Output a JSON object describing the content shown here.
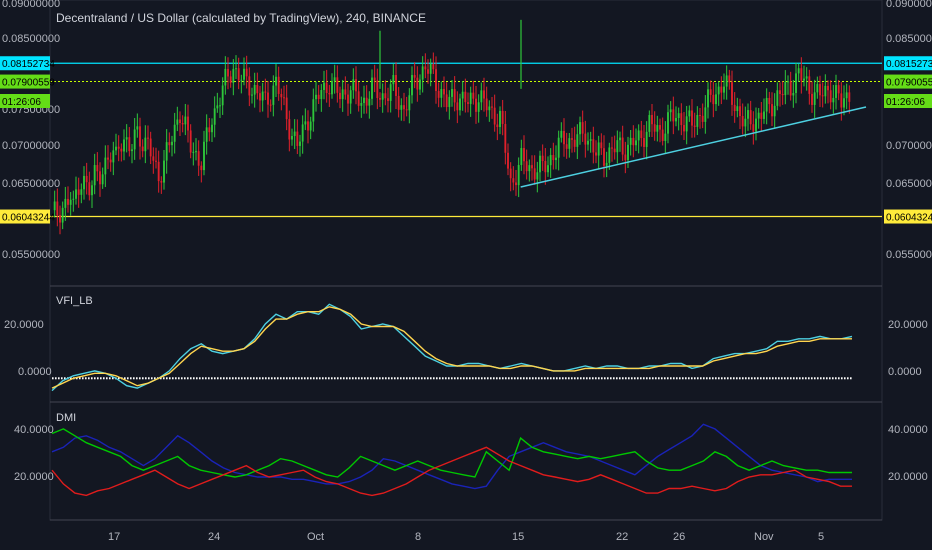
{
  "chart_data": [
    {
      "type": "candlestick",
      "title": "Decentraland / US Dollar (calculated by TradingView), 240, BINANCE",
      "y_ticks": [
        "0.09000000",
        "0.08500000",
        "0.07500000",
        "0.07000000",
        "0.06500000",
        "0.05500000"
      ],
      "ylim": [
        0.052,
        0.09
      ],
      "x_ticks": [
        "17",
        "24",
        "Oct",
        "8",
        "15",
        "22",
        "26",
        "Nov",
        "5"
      ],
      "close_path": [
        [
          0,
          0.0605
        ],
        [
          2,
          0.063
        ],
        [
          4,
          0.066
        ],
        [
          6,
          0.069
        ],
        [
          8,
          0.072
        ],
        [
          9,
          0.07
        ],
        [
          10,
          0.066
        ],
        [
          11,
          0.07
        ],
        [
          12,
          0.075
        ],
        [
          13,
          0.07
        ],
        [
          14,
          0.068
        ],
        [
          15,
          0.074
        ],
        [
          16,
          0.078
        ],
        [
          17,
          0.081
        ],
        [
          18,
          0.079
        ],
        [
          19,
          0.078
        ],
        [
          20,
          0.076
        ],
        [
          21,
          0.079
        ],
        [
          22,
          0.074
        ],
        [
          23,
          0.07
        ],
        [
          24,
          0.074
        ],
        [
          25,
          0.077
        ],
        [
          26,
          0.079
        ],
        [
          27,
          0.077
        ],
        [
          28,
          0.078
        ],
        [
          29,
          0.076
        ],
        [
          30,
          0.078
        ],
        [
          31,
          0.077
        ],
        [
          32,
          0.078
        ],
        [
          33,
          0.075
        ],
        [
          34,
          0.079
        ],
        [
          35,
          0.081
        ],
        [
          36,
          0.079
        ],
        [
          37,
          0.076
        ],
        [
          38,
          0.077
        ],
        [
          39,
          0.076
        ],
        [
          40,
          0.077
        ],
        [
          41,
          0.075
        ],
        [
          42,
          0.074
        ],
        [
          43,
          0.065
        ],
        [
          44,
          0.068
        ],
        [
          45,
          0.067
        ],
        [
          46,
          0.067
        ],
        [
          47,
          0.069
        ],
        [
          48,
          0.071
        ],
        [
          49,
          0.071
        ],
        [
          50,
          0.072
        ],
        [
          51,
          0.069
        ],
        [
          52,
          0.069
        ],
        [
          53,
          0.07
        ],
        [
          54,
          0.07
        ],
        [
          55,
          0.071
        ],
        [
          56,
          0.073
        ],
        [
          57,
          0.072
        ],
        [
          58,
          0.074
        ],
        [
          59,
          0.074
        ],
        [
          60,
          0.073
        ],
        [
          61,
          0.075
        ],
        [
          62,
          0.077
        ],
        [
          63,
          0.079
        ],
        [
          64,
          0.076
        ],
        [
          65,
          0.073
        ],
        [
          66,
          0.074
        ],
        [
          67,
          0.075
        ],
        [
          68,
          0.077
        ],
        [
          69,
          0.078
        ],
        [
          70,
          0.08
        ],
        [
          71,
          0.078
        ],
        [
          72,
          0.077
        ],
        [
          73,
          0.078
        ],
        [
          74,
          0.076
        ],
        [
          75,
          0.078
        ]
      ],
      "price_tags": [
        {
          "text": "0.08152734",
          "value": 0.08152734,
          "color": "#00e5ff"
        },
        {
          "text": "0.07900559",
          "value": 0.07900559,
          "color": "#64dd17"
        },
        {
          "text": "01:26:06",
          "value": 0.077,
          "color": "#64dd17"
        },
        {
          "text": "0.06043244",
          "value": 0.06043244,
          "color": "#ffeb3b"
        }
      ],
      "horizontal_lines": [
        {
          "value": 0.08152734,
          "color": "#00e5ff",
          "style": "solid"
        },
        {
          "value": 0.07900559,
          "color": "#c6ff00",
          "style": "dotted"
        },
        {
          "value": 0.06043244,
          "color": "#ffeb3b",
          "style": "solid"
        }
      ],
      "trendline": {
        "from": [
          43,
          0.0645
        ],
        "to": [
          75,
          0.0755
        ],
        "color": "#4dd0e1"
      }
    },
    {
      "type": "line",
      "name": "VFI_LB",
      "y_ticks": [
        "20.0000",
        "0.0000"
      ],
      "ylim": [
        -8,
        35
      ],
      "series": [
        {
          "color": "#4dd0e1",
          "values": [
            -5,
            -1,
            1,
            2,
            3,
            2,
            0,
            -3,
            -4,
            -2,
            0,
            3,
            8,
            12,
            14,
            11,
            10,
            11,
            12,
            16,
            22,
            26,
            24,
            27,
            27,
            26,
            30,
            28,
            25,
            20,
            21,
            22,
            21,
            17,
            13,
            9,
            7,
            5,
            5,
            6,
            6,
            5,
            4,
            5,
            6,
            5,
            4,
            3,
            3,
            4,
            5,
            4,
            5,
            5,
            4,
            4,
            5,
            5,
            6,
            6,
            4,
            5,
            8,
            9,
            10,
            10,
            11,
            12,
            15,
            15,
            16,
            16,
            17,
            16,
            16,
            17
          ]
        },
        {
          "color": "#ffd54f",
          "values": [
            -4,
            -2,
            0,
            1,
            2,
            2,
            1,
            -1,
            -3,
            -2,
            0,
            2,
            6,
            10,
            13,
            12,
            11,
            11,
            12,
            15,
            20,
            24,
            24,
            26,
            27,
            27,
            29,
            28,
            26,
            22,
            21,
            21,
            21,
            19,
            15,
            11,
            8,
            6,
            5,
            5,
            5,
            5,
            4,
            4,
            5,
            5,
            4,
            3,
            3,
            3,
            4,
            4,
            4,
            4,
            4,
            4,
            4,
            5,
            5,
            5,
            5,
            5,
            7,
            8,
            9,
            10,
            10,
            11,
            13,
            14,
            15,
            15,
            16,
            16,
            16,
            16
          ]
        }
      ]
    },
    {
      "type": "line",
      "name": "DMI",
      "y_ticks": [
        "40.0000",
        "20.0000"
      ],
      "ylim": [
        0,
        48
      ],
      "series": [
        {
          "color": "#1a23b8",
          "values": [
            28,
            30,
            34,
            35,
            33,
            30,
            28,
            25,
            22,
            25,
            30,
            35,
            32,
            28,
            24,
            21,
            19,
            18,
            17,
            17,
            17,
            16,
            16,
            15,
            14,
            14,
            15,
            17,
            20,
            25,
            24,
            22,
            20,
            18,
            16,
            14,
            13,
            12,
            13,
            20,
            26,
            28,
            30,
            32,
            30,
            28,
            27,
            26,
            24,
            22,
            20,
            18,
            22,
            26,
            29,
            32,
            35,
            40,
            38,
            34,
            30,
            26,
            22,
            20,
            19,
            18,
            17,
            15,
            16,
            16,
            16
          ]
        },
        {
          "color": "#00c800",
          "values": [
            36,
            38,
            35,
            32,
            30,
            28,
            26,
            22,
            20,
            22,
            24,
            26,
            22,
            20,
            19,
            18,
            17,
            18,
            20,
            22,
            25,
            24,
            22,
            20,
            18,
            17,
            21,
            26,
            24,
            22,
            20,
            22,
            24,
            22,
            20,
            19,
            18,
            17,
            28,
            24,
            20,
            34,
            30,
            28,
            27,
            26,
            25,
            26,
            25,
            26,
            27,
            28,
            24,
            21,
            20,
            20,
            22,
            24,
            28,
            26,
            22,
            20,
            22,
            24,
            22,
            21,
            20,
            20,
            19,
            19,
            19
          ]
        },
        {
          "color": "#e01c1c",
          "values": [
            20,
            14,
            10,
            9,
            11,
            12,
            14,
            16,
            18,
            20,
            17,
            14,
            12,
            14,
            16,
            18,
            20,
            22,
            19,
            17,
            18,
            19,
            20,
            17,
            15,
            14,
            12,
            10,
            9,
            10,
            12,
            14,
            17,
            20,
            22,
            24,
            26,
            28,
            30,
            27,
            24,
            22,
            20,
            18,
            17,
            16,
            15,
            16,
            18,
            16,
            14,
            12,
            10,
            10,
            12,
            12,
            13,
            12,
            11,
            12,
            15,
            17,
            18,
            18,
            19,
            20,
            17,
            16,
            15,
            13,
            13
          ]
        }
      ]
    }
  ]
}
